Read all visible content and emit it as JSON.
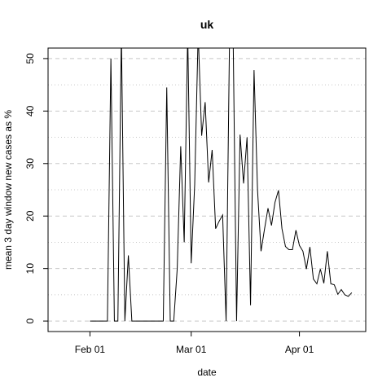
{
  "chart_data": {
    "type": "line",
    "title": "uk",
    "xlabel": "date",
    "ylabel": "mean  3  day window new cases as %",
    "x_ticks": [
      {
        "date": "2020-02-01",
        "label": "Feb 01"
      },
      {
        "date": "2020-03-01",
        "label": "Mar 01"
      },
      {
        "date": "2020-04-01",
        "label": "Apr 01"
      }
    ],
    "y_ticks": [
      0,
      10,
      20,
      30,
      40,
      50
    ],
    "xlim": [
      "2020-01-20",
      "2020-04-20"
    ],
    "ylim": [
      -2,
      52
    ],
    "grid": true,
    "series": [
      {
        "x": [
          "2020-02-01",
          "2020-02-02",
          "2020-02-03",
          "2020-02-04",
          "2020-02-05",
          "2020-02-06",
          "2020-02-07",
          "2020-02-08",
          "2020-02-09",
          "2020-02-10",
          "2020-02-11",
          "2020-02-12",
          "2020-02-13",
          "2020-02-14",
          "2020-02-15",
          "2020-02-16",
          "2020-02-17",
          "2020-02-18",
          "2020-02-19",
          "2020-02-20",
          "2020-02-21",
          "2020-02-22",
          "2020-02-23",
          "2020-02-24",
          "2020-02-25",
          "2020-02-26",
          "2020-02-27",
          "2020-02-28",
          "2020-02-29",
          "2020-03-01",
          "2020-03-02",
          "2020-03-03",
          "2020-03-04",
          "2020-03-05",
          "2020-03-06",
          "2020-03-07",
          "2020-03-08",
          "2020-03-09",
          "2020-03-10",
          "2020-03-11",
          "2020-03-12",
          "2020-03-13",
          "2020-03-14",
          "2020-03-15",
          "2020-03-16",
          "2020-03-17",
          "2020-03-18",
          "2020-03-19",
          "2020-03-20",
          "2020-03-21",
          "2020-03-22",
          "2020-03-23",
          "2020-03-24",
          "2020-03-25",
          "2020-03-26",
          "2020-03-27",
          "2020-03-28",
          "2020-03-29",
          "2020-03-30",
          "2020-03-31",
          "2020-04-01",
          "2020-04-02",
          "2020-04-03",
          "2020-04-04",
          "2020-04-05",
          "2020-04-06",
          "2020-04-07",
          "2020-04-08",
          "2020-04-09",
          "2020-04-10",
          "2020-04-11",
          "2020-04-12",
          "2020-04-13",
          "2020-04-14",
          "2020-04-15",
          "2020-04-16"
        ],
        "values": [
          0,
          0,
          0,
          0,
          0,
          0,
          50,
          0,
          0,
          55,
          0,
          12.5,
          0,
          0,
          0,
          0,
          0,
          0,
          0,
          0,
          0,
          0,
          44.5,
          0,
          0,
          10,
          33.3,
          15,
          55,
          11,
          26,
          55,
          35.3,
          41.7,
          26.4,
          32.6,
          17.6,
          19,
          20.2,
          0,
          55,
          55,
          0,
          35.5,
          26.2,
          35,
          3,
          47.8,
          25,
          13.3,
          17.5,
          21.5,
          18.2,
          22.6,
          24.9,
          17.6,
          14.2,
          13.6,
          13.6,
          17.3,
          14.4,
          13.3,
          9.9,
          14.1,
          8,
          7.1,
          9.9,
          7.2,
          13.3,
          7.1,
          6.9,
          5.1,
          6,
          5,
          4.7,
          5.4
        ]
      }
    ]
  }
}
